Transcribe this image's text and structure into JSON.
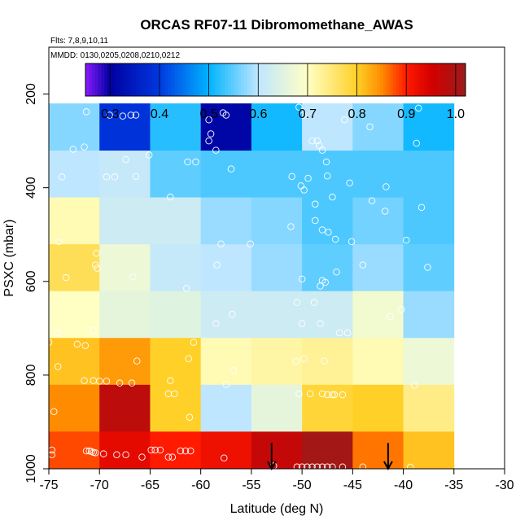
{
  "chart_data": {
    "type": "heatmap",
    "title": "ORCAS RF07-11 Dibromomethane_AWAS",
    "subtitle_flights": "Flts: 7,8,9,10,11",
    "subtitle_dates": "MMDD: 0130,0205,0208,0210,0212",
    "xlabel": "Latitude (deg N)",
    "ylabel": "PSXC (mbar)",
    "xlim": [
      -75,
      -30
    ],
    "ylim": [
      1000,
      100
    ],
    "x_ticks": [
      "-75",
      "-70",
      "-65",
      "-60",
      "-55",
      "-50",
      "-45",
      "-40",
      "-35",
      "-30"
    ],
    "x_tick_values": [
      -75,
      -70,
      -65,
      -60,
      -55,
      -50,
      -45,
      -40,
      -35,
      -30
    ],
    "y_ticks": [
      "200",
      "400",
      "600",
      "800",
      "1000"
    ],
    "y_tick_values": [
      200,
      400,
      600,
      800,
      1000
    ],
    "colorbar": {
      "range": [
        0.25,
        1.02
      ],
      "tick_labels": [
        "0.3",
        "0.4",
        "0.5",
        "0.6",
        "0.7",
        "0.8",
        "0.9",
        "1.0"
      ],
      "tick_values": [
        0.3,
        0.4,
        0.5,
        0.6,
        0.7,
        0.8,
        0.9,
        1.0
      ],
      "color_stops": [
        "#8b1aff",
        "#0000a0",
        "#0038e0",
        "#00b4ff",
        "#bfe6ff",
        "#ffffc4",
        "#ffd028",
        "#ff8c00",
        "#ff1a00",
        "#d40000",
        "#9b1b1b"
      ],
      "stop_values": [
        0.25,
        0.3,
        0.4,
        0.5,
        0.6,
        0.7,
        0.8,
        0.85,
        0.9,
        0.95,
        1.02
      ]
    },
    "lat_bins": [
      -75,
      -70,
      -65,
      -60,
      -55,
      -50,
      -45,
      -40,
      -35
    ],
    "pressure_bins": [
      1000,
      920,
      820,
      720,
      620,
      520,
      420,
      320,
      220,
      120
    ],
    "cells": [
      [
        0.88,
        0.93,
        0.9,
        0.92,
        0.97,
        1.01,
        0.86,
        0.81
      ],
      [
        0.85,
        0.98,
        0.8,
        0.6,
        0.66,
        0.79,
        0.8,
        0.74
      ],
      [
        0.81,
        0.84,
        0.8,
        0.71,
        0.72,
        0.73,
        0.71,
        0.67
      ],
      [
        0.7,
        0.66,
        0.65,
        0.62,
        0.62,
        0.62,
        0.68,
        0.58
      ],
      [
        0.77,
        0.67,
        0.61,
        0.6,
        0.58,
        0.55,
        0.58,
        0.55
      ],
      [
        0.71,
        0.62,
        0.62,
        0.58,
        0.57,
        0.54,
        0.56,
        0.54
      ],
      [
        0.6,
        0.61,
        0.55,
        0.54,
        0.54,
        0.54,
        0.54,
        0.54
      ],
      [
        0.57,
        0.39,
        0.52,
        0.31,
        0.51,
        0.6,
        0.57,
        0.51
      ],
      [
        0.59,
        0.57,
        0.55,
        0.29,
        0.25,
        0.52,
        0.51,
        0.51
      ]
    ],
    "sample_points": [
      [
        -74.7,
        960
      ],
      [
        -74.7,
        970
      ],
      [
        -71.3,
        962
      ],
      [
        -71.0,
        962
      ],
      [
        -70.8,
        963
      ],
      [
        -70.6,
        965
      ],
      [
        -70.4,
        966
      ],
      [
        -69.6,
        968
      ],
      [
        -68.3,
        970
      ],
      [
        -67.4,
        970
      ],
      [
        -65.8,
        975
      ],
      [
        -64.9,
        960
      ],
      [
        -64.5,
        960
      ],
      [
        -64.0,
        960
      ],
      [
        -63.2,
        975
      ],
      [
        -62.8,
        975
      ],
      [
        -62.0,
        962
      ],
      [
        -61.5,
        962
      ],
      [
        -61.0,
        962
      ],
      [
        -57.7,
        977
      ],
      [
        -52.8,
        994
      ],
      [
        -50.5,
        996
      ],
      [
        -50.0,
        996
      ],
      [
        -49.5,
        996
      ],
      [
        -49.0,
        996
      ],
      [
        -48.5,
        996
      ],
      [
        -48.0,
        996
      ],
      [
        -47.5,
        996
      ],
      [
        -47.0,
        996
      ],
      [
        -46.0,
        996
      ],
      [
        -44.0,
        996
      ],
      [
        -39.3,
        1000
      ],
      [
        -74.5,
        878
      ],
      [
        -71.5,
        812
      ],
      [
        -70.6,
        812
      ],
      [
        -70.0,
        813
      ],
      [
        -69.3,
        813
      ],
      [
        -68.0,
        817
      ],
      [
        -66.8,
        817
      ],
      [
        -63.2,
        840
      ],
      [
        -62.6,
        840
      ],
      [
        -61.1,
        890
      ],
      [
        -57.5,
        820
      ],
      [
        -50.3,
        840
      ],
      [
        -49.2,
        840
      ],
      [
        -48.0,
        840
      ],
      [
        -47.5,
        842
      ],
      [
        -47.0,
        842
      ],
      [
        -46.8,
        842
      ],
      [
        -46.0,
        842
      ],
      [
        -38.9,
        822
      ],
      [
        -74.1,
        782
      ],
      [
        -72.2,
        734
      ],
      [
        -71.4,
        737
      ],
      [
        -66.3,
        770
      ],
      [
        -63.0,
        812
      ],
      [
        -61.2,
        765
      ],
      [
        -50.6,
        770
      ],
      [
        -49.8,
        765
      ],
      [
        -47.8,
        770
      ],
      [
        -56.8,
        790
      ],
      [
        -75.0,
        730
      ],
      [
        -74.1,
        710
      ],
      [
        -70.6,
        705
      ],
      [
        -60.7,
        730
      ],
      [
        -58.5,
        690
      ],
      [
        -56.9,
        670
      ],
      [
        -50.0,
        690
      ],
      [
        -48.8,
        645
      ],
      [
        -48.2,
        690
      ],
      [
        -46.3,
        710
      ],
      [
        -45.5,
        710
      ],
      [
        -41.3,
        675
      ],
      [
        -40.2,
        660
      ],
      [
        -73.3,
        592
      ],
      [
        -70.4,
        565
      ],
      [
        -70.2,
        572
      ],
      [
        -66.7,
        590
      ],
      [
        -61.4,
        615
      ],
      [
        -58.4,
        565
      ],
      [
        -50.5,
        645
      ],
      [
        -50.0,
        595
      ],
      [
        -48.2,
        610
      ],
      [
        -48.0,
        598
      ],
      [
        -47.7,
        602
      ],
      [
        -46.6,
        580
      ],
      [
        -44.0,
        565
      ],
      [
        -37.6,
        570
      ],
      [
        -74.0,
        515
      ],
      [
        -70.3,
        540
      ],
      [
        -58.0,
        520
      ],
      [
        -55.1,
        520
      ],
      [
        -51.1,
        483
      ],
      [
        -48.7,
        470
      ],
      [
        -48.0,
        490
      ],
      [
        -47.4,
        495
      ],
      [
        -46.7,
        510
      ],
      [
        -45.1,
        515
      ],
      [
        -41.8,
        450
      ],
      [
        -39.7,
        512
      ],
      [
        -73.7,
        377
      ],
      [
        -72.6,
        318
      ],
      [
        -71.5,
        313
      ],
      [
        -69.3,
        377
      ],
      [
        -68.5,
        377
      ],
      [
        -67.4,
        340
      ],
      [
        -66.4,
        376
      ],
      [
        -65.1,
        330
      ],
      [
        -63.0,
        420
      ],
      [
        -61.3,
        345
      ],
      [
        -60.5,
        345
      ],
      [
        -59.2,
        300
      ],
      [
        -57.0,
        360
      ],
      [
        -51.0,
        376
      ],
      [
        -50.1,
        396
      ],
      [
        -49.8,
        405
      ],
      [
        -49.4,
        380
      ],
      [
        -49.0,
        300
      ],
      [
        -48.5,
        300
      ],
      [
        -48.3,
        310
      ],
      [
        -48.0,
        320
      ],
      [
        -47.6,
        345
      ],
      [
        -47.5,
        375
      ],
      [
        -47.0,
        420
      ],
      [
        -48.7,
        435
      ],
      [
        -45.3,
        390
      ],
      [
        -43.1,
        428
      ],
      [
        -41.7,
        398
      ],
      [
        -38.2,
        442
      ],
      [
        -71.3,
        238
      ],
      [
        -69.0,
        245
      ],
      [
        -67.7,
        247
      ],
      [
        -66.9,
        245
      ],
      [
        -66.7,
        213
      ],
      [
        -66.4,
        245
      ],
      [
        -59.2,
        255
      ],
      [
        -59.0,
        285
      ],
      [
        -57.8,
        240
      ],
      [
        -57.5,
        245
      ],
      [
        -58.5,
        320
      ],
      [
        -57.7,
        210
      ],
      [
        -50.3,
        228
      ],
      [
        -49.9,
        245
      ],
      [
        -45.8,
        255
      ],
      [
        -43.3,
        270
      ],
      [
        -38.7,
        305
      ],
      [
        -38.5,
        230
      ],
      [
        -72.0,
        185
      ],
      [
        -70.2,
        185
      ],
      [
        -64.9,
        180
      ],
      [
        -62.6,
        185
      ],
      [
        -61.8,
        185
      ],
      [
        -61.5,
        198
      ],
      [
        -59.3,
        190
      ],
      [
        -58.9,
        190
      ],
      [
        -57.4,
        190
      ],
      [
        -57.0,
        190
      ],
      [
        -56.6,
        190
      ],
      [
        -56.3,
        190
      ],
      [
        -55.9,
        190
      ],
      [
        -55.5,
        192
      ],
      [
        -49.2,
        190
      ],
      [
        -48.5,
        205
      ],
      [
        -47.4,
        200
      ],
      [
        -46.8,
        200
      ],
      [
        -37.1,
        190
      ],
      [
        -36.8,
        190
      ],
      [
        -36.5,
        190
      ],
      [
        -36.2,
        190
      ],
      [
        -35.9,
        190
      ],
      [
        -35.6,
        190
      ],
      [
        -35.3,
        190
      ],
      [
        -35.0,
        190
      ],
      [
        -34.7,
        190
      ],
      [
        -34.4,
        190
      ],
      [
        -34.1,
        190
      ],
      [
        -33.8,
        190
      ],
      [
        -33.5,
        190
      ]
    ],
    "arrows": [
      {
        "lat": -53.0,
        "pressure_from": 945,
        "pressure_to": 1002
      },
      {
        "lat": -41.5,
        "pressure_from": 945,
        "pressure_to": 1002
      }
    ]
  }
}
